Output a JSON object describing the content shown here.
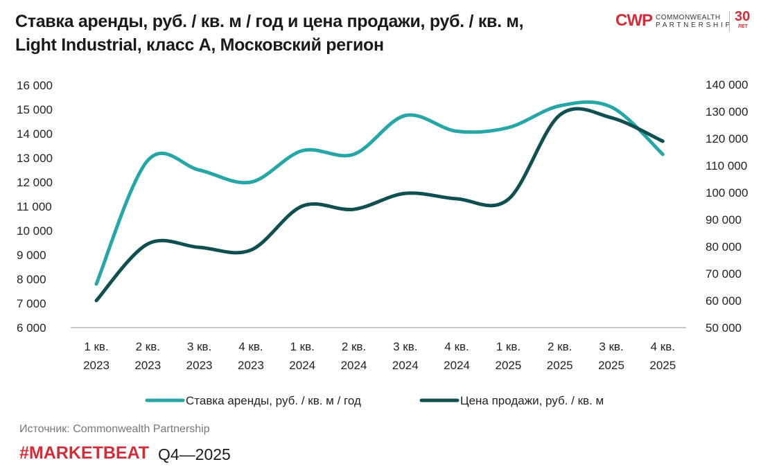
{
  "title": "Ставка аренды, руб. / кв. м / год и цена продажи, руб. / кв. м, Light Industrial, класс А, Московский регион",
  "title_line1": "Ставка аренды, руб. / кв. м / год и цена продажи, руб. / кв. м,",
  "title_line2": "Light Industrial, класс А, Московский регион",
  "logo": {
    "mark": "CWP",
    "name_line1": "COMMONWEALTH",
    "name_line2": "PARTNERSHIP",
    "years": "30",
    "years_label": "ЛЕТ"
  },
  "footer": {
    "source": "Источник: Commonwealth Partnership",
    "brand": "#MARKETBEAT",
    "period": "Q4—2025"
  },
  "colors": {
    "rent": "#26a6a6",
    "price": "#0f4f52",
    "brand": "#d42d3a"
  },
  "chart_data": {
    "type": "line",
    "smoothed": true,
    "categories": [
      [
        "1 кв.",
        "2023"
      ],
      [
        "2 кв.",
        "2023"
      ],
      [
        "3 кв.",
        "2023"
      ],
      [
        "4 кв.",
        "2023"
      ],
      [
        "1 кв.",
        "2024"
      ],
      [
        "2 кв.",
        "2024"
      ],
      [
        "3 кв.",
        "2024"
      ],
      [
        "4 кв.",
        "2024"
      ],
      [
        "1 кв.",
        "2025"
      ],
      [
        "2 кв.",
        "2025"
      ],
      [
        "3 кв.",
        "2025"
      ],
      [
        "4 кв.",
        "2025"
      ]
    ],
    "y_left": {
      "range": [
        6000,
        16000
      ],
      "ticks": [
        "6 000",
        "7 000",
        "8 000",
        "9 000",
        "10 000",
        "11 000",
        "12 000",
        "13 000",
        "14 000",
        "15 000",
        "16 000"
      ]
    },
    "y_right": {
      "range": [
        50000,
        140000
      ],
      "ticks": [
        "50 000",
        "60 000",
        "70 000",
        "80 000",
        "90 000",
        "100 000",
        "110 000",
        "120 000",
        "130 000",
        "140 000"
      ]
    },
    "grid": false,
    "legend": "bottom",
    "series": [
      {
        "name": "Ставка аренды, руб. / кв. м / год",
        "axis": "left",
        "color": "#26a6a6",
        "values": [
          7800,
          12900,
          12500,
          12000,
          13300,
          13150,
          14750,
          14100,
          14250,
          15150,
          15100,
          13150
        ]
      },
      {
        "name": "Цена продажи, руб. / кв. м",
        "axis": "right",
        "color": "#0f4f52",
        "values": [
          60000,
          81000,
          79700,
          78700,
          95000,
          93800,
          99700,
          97700,
          97500,
          128700,
          127700,
          119000
        ]
      }
    ]
  }
}
